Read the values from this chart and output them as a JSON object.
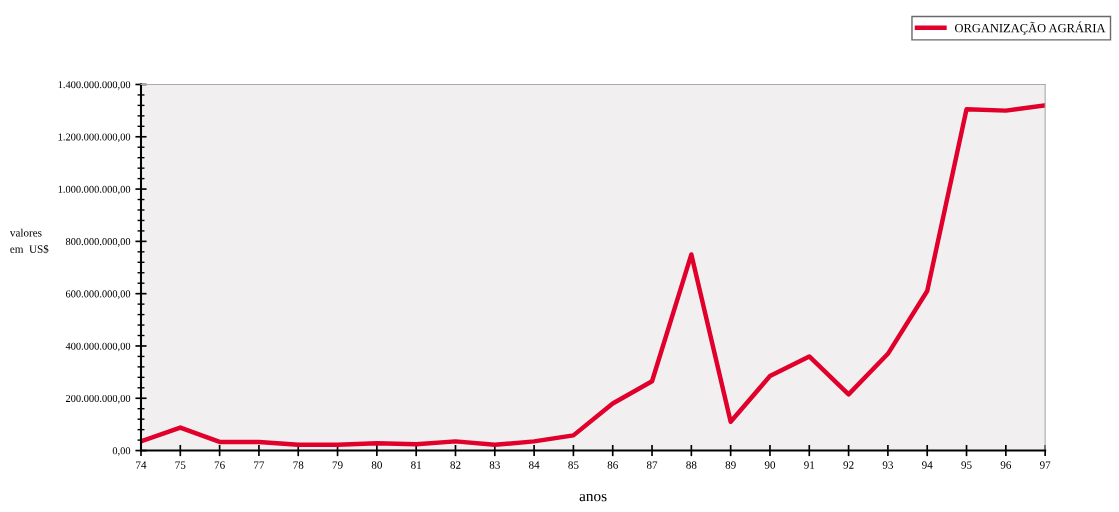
{
  "chart_data": {
    "type": "line",
    "xlabel": "anos",
    "ylabel": "valores\nem  US$",
    "x": [
      74,
      75,
      76,
      77,
      78,
      79,
      80,
      81,
      82,
      83,
      84,
      85,
      86,
      87,
      88,
      89,
      90,
      91,
      92,
      93,
      94,
      95,
      96,
      97
    ],
    "series": [
      {
        "name": "ORGANIZAÇÃO AGRÁRIA",
        "color": "#e0002b",
        "values": [
          35000000,
          88000000,
          33000000,
          33000000,
          22000000,
          22000000,
          28000000,
          24000000,
          35000000,
          22000000,
          35000000,
          58000000,
          180000000,
          265000000,
          750000000,
          110000000,
          285000000,
          360000000,
          215000000,
          370000000,
          610000000,
          1305000000,
          1300000000,
          1320000000
        ]
      }
    ],
    "xlim": [
      74,
      97
    ],
    "xticks": [
      74,
      75,
      76,
      77,
      78,
      79,
      80,
      81,
      82,
      83,
      84,
      85,
      86,
      87,
      88,
      89,
      90,
      91,
      92,
      93,
      94,
      95,
      96,
      97
    ],
    "ylim": [
      0,
      1400000000
    ],
    "yticks": [
      {
        "value": 0,
        "label": "0,00"
      },
      {
        "value": 200000000,
        "label": "200.000.000,00"
      },
      {
        "value": 400000000,
        "label": "400.000.000,00"
      },
      {
        "value": 600000000,
        "label": "600.000.000,00"
      },
      {
        "value": 800000000,
        "label": "800.000.000,00"
      },
      {
        "value": 1000000000,
        "label": "1.000.000.000,00"
      },
      {
        "value": 1200000000,
        "label": "1.200.000.000,00"
      },
      {
        "value": 1400000000,
        "label": "1.400.000.000,00"
      }
    ],
    "grid": false,
    "legend": "top right",
    "marker": "none",
    "line_style": "solid"
  }
}
